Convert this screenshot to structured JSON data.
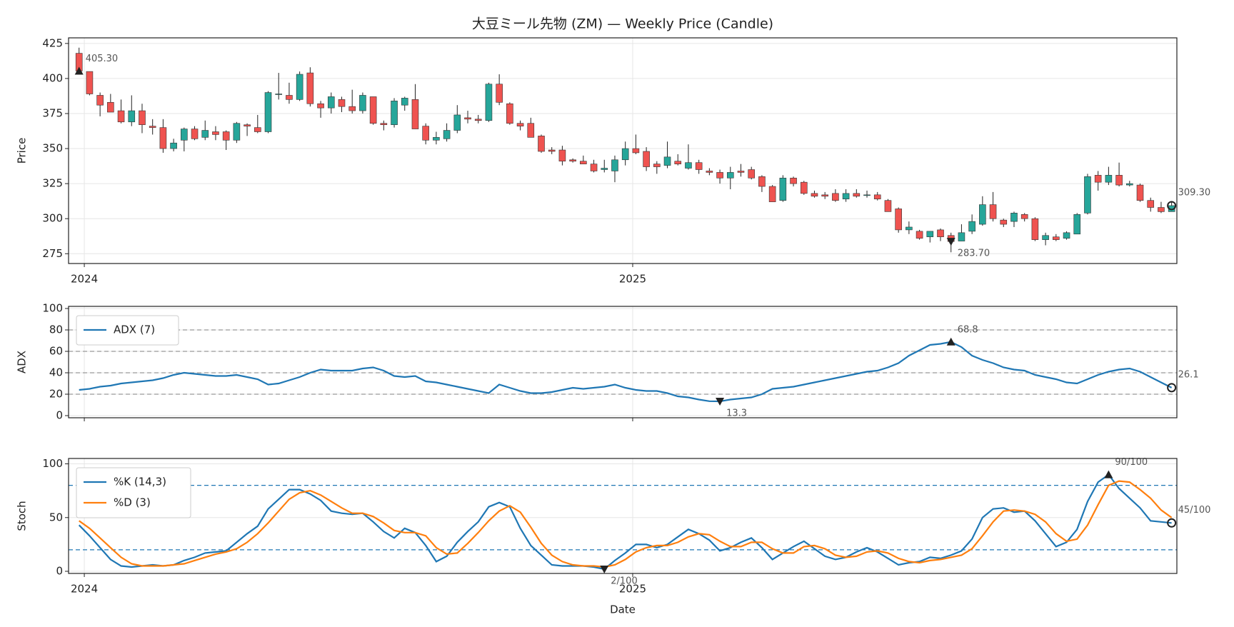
{
  "chart_data": [
    {
      "type": "candlestick",
      "title": "大豆ミール先物 (ZM) — Weekly Price (Candle)",
      "ylabel": "Price",
      "xlim": [
        -1,
        104.5
      ],
      "xticks": [
        {
          "value": 0.5,
          "label": "2024"
        },
        {
          "value": 52.7,
          "label": "2025"
        }
      ],
      "ylim": [
        268,
        429
      ],
      "yticks": [
        275,
        300,
        325,
        350,
        375,
        400,
        425
      ],
      "grid": true,
      "up_color": "#26a69a",
      "down_color": "#ef5350",
      "open": [
        418,
        405,
        388,
        383,
        377,
        369,
        377,
        366,
        365,
        350,
        356,
        364,
        358,
        362,
        362,
        356,
        367,
        365,
        362,
        389,
        388,
        385,
        404,
        382,
        379,
        385,
        380,
        377,
        387,
        368,
        367,
        381,
        385,
        366,
        356,
        357,
        363,
        372,
        371,
        370,
        396,
        382,
        368,
        368,
        359,
        349,
        349,
        342,
        341,
        339,
        335,
        334,
        342,
        350,
        348,
        339,
        338,
        341,
        336,
        340,
        334,
        333,
        329,
        334,
        335,
        330,
        323,
        313,
        329,
        326,
        318,
        317,
        318,
        314,
        318,
        317,
        317,
        313,
        307,
        292,
        291,
        287,
        292,
        288,
        284,
        291,
        296,
        310,
        299,
        298,
        303,
        300,
        285,
        287,
        286,
        289,
        304,
        331,
        326,
        331,
        324,
        324,
        313,
        308,
        305
      ],
      "high": [
        422,
        405,
        390,
        389,
        385,
        388,
        382,
        371,
        371,
        357,
        365,
        366,
        370,
        366,
        363,
        369,
        368,
        374,
        391,
        404,
        397,
        405,
        408,
        384,
        390,
        387,
        392,
        390,
        387,
        370,
        386,
        387,
        396,
        368,
        362,
        368,
        381,
        377,
        374,
        397,
        403,
        383,
        370,
        372,
        360,
        351,
        352,
        343,
        345,
        342,
        342,
        345,
        355,
        360,
        351,
        341,
        355,
        346,
        353,
        342,
        336,
        335,
        337,
        339,
        337,
        331,
        324,
        331,
        330,
        327,
        320,
        319,
        321,
        321,
        321,
        320,
        319,
        314,
        308,
        298,
        292,
        291,
        293,
        290,
        296,
        303,
        316,
        319,
        300,
        305,
        304,
        301,
        290,
        289,
        291,
        304,
        332,
        334,
        337,
        340,
        327,
        325,
        315,
        312,
        312
      ],
      "low": [
        403,
        388,
        373,
        376,
        368,
        366,
        361,
        360,
        347,
        348,
        348,
        356,
        356,
        356,
        349,
        354,
        359,
        361,
        361,
        385,
        382,
        384,
        380,
        372,
        375,
        376,
        375,
        375,
        367,
        363,
        365,
        377,
        364,
        353,
        353,
        355,
        361,
        368,
        368,
        369,
        381,
        367,
        363,
        358,
        347,
        346,
        338,
        340,
        339,
        333,
        333,
        326,
        338,
        346,
        334,
        332,
        336,
        338,
        335,
        332,
        331,
        325,
        321,
        330,
        328,
        319,
        312,
        312,
        323,
        317,
        315,
        314,
        312,
        312,
        315,
        315,
        313,
        305,
        290,
        289,
        285,
        283,
        284,
        276,
        284,
        289,
        295,
        298,
        294,
        294,
        298,
        284,
        281,
        284,
        285,
        289,
        303,
        320,
        324,
        323,
        323,
        312,
        305,
        304,
        305
      ],
      "close": [
        405.3,
        389,
        381,
        376,
        369,
        377,
        367,
        365,
        350,
        354,
        364,
        357,
        363,
        360,
        356,
        368,
        366,
        362,
        390,
        389,
        385,
        403,
        382,
        379,
        387,
        380,
        377,
        388,
        368,
        367,
        384,
        386,
        364,
        356,
        358,
        363,
        374,
        371,
        370,
        396,
        383,
        368,
        366,
        358,
        348,
        348,
        341,
        341,
        339,
        334,
        336,
        342,
        350,
        347,
        337,
        337,
        344,
        339,
        340,
        335,
        333,
        329,
        333,
        333,
        329,
        323,
        312,
        329,
        325,
        318,
        316,
        316,
        313,
        318,
        316,
        317,
        314,
        305,
        292,
        294,
        286,
        291,
        287,
        283.7,
        290,
        298,
        310,
        300,
        296,
        304,
        300,
        285,
        288,
        285,
        290,
        303,
        330,
        326,
        331,
        324,
        325,
        313,
        308,
        305,
        309.3
      ],
      "annotations": [
        {
          "value": 405.3,
          "label": "405.30"
        },
        {
          "value": 283.7,
          "label": "283.70"
        },
        {
          "value": 309.3,
          "label": "309.30"
        }
      ]
    },
    {
      "type": "line",
      "ylabel": "ADX",
      "ylim": [
        -2,
        102
      ],
      "yticks": [
        0,
        20,
        40,
        60,
        80,
        100
      ],
      "grid": true,
      "legend": "upper left",
      "hlines": [
        20,
        40,
        60,
        80
      ],
      "hline_color": "#999999",
      "series": [
        {
          "name": "ADX (7)",
          "color": "#1f77b4",
          "values": [
            24,
            25,
            27,
            28,
            30,
            31,
            32,
            33,
            35,
            38,
            40,
            39,
            38,
            37,
            37,
            38,
            36,
            34,
            29,
            30,
            33,
            36,
            40,
            43,
            42,
            42,
            42,
            44,
            45,
            42,
            37,
            36,
            37,
            32,
            31,
            29,
            27,
            25,
            23,
            21,
            29,
            26,
            23,
            21,
            21,
            22,
            24,
            26,
            25,
            26,
            27,
            29,
            26,
            24,
            23,
            23,
            21,
            18,
            17,
            15,
            13.5,
            13.3,
            15,
            16,
            17,
            20,
            25,
            26,
            27,
            29,
            31,
            33,
            35,
            37,
            39,
            41,
            42,
            45,
            49,
            56,
            61,
            66,
            67,
            68.8,
            64,
            56,
            52,
            49,
            45,
            43,
            42,
            38,
            36,
            34,
            31,
            30,
            34,
            38,
            41,
            43,
            44,
            41,
            36,
            31,
            26.1
          ]
        }
      ],
      "annotations": [
        68.8,
        13.3,
        26.1
      ]
    },
    {
      "type": "line",
      "ylabel": "Stoch",
      "xlabel": "Date",
      "ylim": [
        -2,
        105
      ],
      "yticks": [
        0,
        50,
        100
      ],
      "grid": true,
      "legend": "upper left",
      "xticks": [
        {
          "value": 0.5,
          "label": "2024"
        },
        {
          "value": 52.7,
          "label": "2025"
        }
      ],
      "hlines": [
        20,
        80
      ],
      "hline_color": "#1f77b4",
      "series": [
        {
          "name": "%K (14,3)",
          "color": "#1f77b4",
          "values": [
            43,
            33,
            22,
            11,
            5,
            4,
            5,
            6,
            5,
            6,
            10,
            13,
            17,
            18,
            19,
            27,
            35,
            42,
            58,
            67,
            76,
            76,
            72,
            66,
            56,
            54,
            53,
            54,
            46,
            37,
            31,
            40,
            36,
            24,
            9,
            14,
            27,
            37,
            46,
            60,
            64,
            60,
            40,
            24,
            15,
            6,
            5,
            5,
            5,
            4,
            2,
            10,
            17,
            25,
            25,
            22,
            25,
            32,
            39,
            35,
            29,
            19,
            22,
            27,
            31,
            22,
            11,
            17,
            23,
            28,
            21,
            14,
            11,
            13,
            18,
            22,
            18,
            12,
            6,
            8,
            9,
            13,
            12,
            15,
            19,
            30,
            50,
            58,
            59,
            55,
            56,
            47,
            35,
            23,
            27,
            39,
            65,
            83,
            90,
            77,
            68,
            59,
            47,
            46,
            45
          ]
        },
        {
          "name": "%D (3)",
          "color": "#ff7f0e",
          "values": [
            47,
            40,
            31,
            22,
            13,
            7,
            5,
            5,
            5,
            6,
            7,
            10,
            13,
            16,
            18,
            21,
            27,
            35,
            45,
            56,
            67,
            73,
            75,
            71,
            65,
            59,
            54,
            54,
            51,
            45,
            38,
            36,
            36,
            33,
            22,
            16,
            17,
            26,
            36,
            47,
            56,
            61,
            55,
            41,
            26,
            15,
            9,
            6,
            5,
            5,
            4,
            6,
            11,
            18,
            22,
            24,
            24,
            27,
            32,
            35,
            34,
            28,
            23,
            23,
            27,
            27,
            21,
            17,
            17,
            23,
            24,
            21,
            15,
            13,
            14,
            18,
            19,
            17,
            12,
            9,
            8,
            10,
            11,
            13,
            15,
            21,
            33,
            46,
            56,
            57,
            56,
            53,
            46,
            35,
            28,
            30,
            43,
            62,
            80,
            84,
            83,
            76,
            68,
            57,
            50
          ]
        }
      ],
      "annotations": [
        {
          "value": 90,
          "label": "90/100"
        },
        {
          "value": 2,
          "label": "2/100"
        },
        {
          "value": 45,
          "label": "45/100"
        }
      ]
    }
  ]
}
